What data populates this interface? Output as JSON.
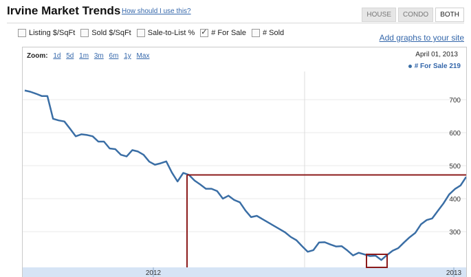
{
  "header": {
    "title": "Irvine Market Trends",
    "help_link": "How should I use this?",
    "tabs": [
      {
        "label": "HOUSE",
        "active": false
      },
      {
        "label": "CONDO",
        "active": false
      },
      {
        "label": "BOTH",
        "active": true
      }
    ]
  },
  "options": {
    "checkboxes": [
      {
        "label": "Listing $/SqFt",
        "checked": false
      },
      {
        "label": "Sold $/SqFt",
        "checked": false
      },
      {
        "label": "Sale-to-List %",
        "checked": false
      },
      {
        "label": "# For Sale",
        "checked": true
      },
      {
        "label": "# Sold",
        "checked": false
      }
    ],
    "add_link": "Add graphs to your site"
  },
  "zoom": {
    "label": "Zoom:",
    "options": [
      "1d",
      "5d",
      "1m",
      "3m",
      "6m",
      "1y",
      "Max"
    ]
  },
  "readout": {
    "date": "April 01, 2013",
    "series_label": "# For Sale",
    "series_value": "219"
  },
  "colors": {
    "series": "#3a6ea5",
    "annotation": "#8b1a1a",
    "axis_band": "#d6e4f5"
  },
  "chart_data": {
    "type": "line",
    "y_ticks": [
      "700",
      "600",
      "500",
      "400",
      "300"
    ],
    "x_labels": [
      "2012",
      "2013"
    ],
    "series": [
      {
        "name": "# For Sale",
        "values": [
          728,
          724,
          718,
          711,
          711,
          642,
          637,
          634,
          612,
          589,
          595,
          593,
          589,
          573,
          573,
          552,
          550,
          533,
          528,
          547,
          543,
          533,
          512,
          503,
          507,
          513,
          479,
          452,
          478,
          472,
          455,
          443,
          430,
          430,
          423,
          400,
          409,
          396,
          389,
          364,
          344,
          348,
          338,
          328,
          318,
          308,
          298,
          284,
          274,
          256,
          239,
          244,
          267,
          268,
          261,
          255,
          256,
          243,
          228,
          236,
          231,
          226,
          227,
          214,
          229,
          242,
          250,
          267,
          283,
          296,
          322,
          335,
          340,
          363,
          386,
          413,
          429,
          440,
          466
        ]
      }
    ],
    "annotations": [
      "horizontal reference line",
      "vertical drop line",
      "minimum box"
    ]
  }
}
